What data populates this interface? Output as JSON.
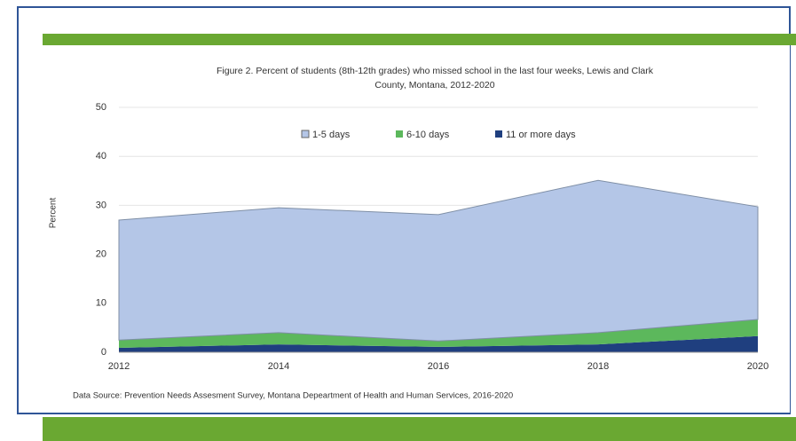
{
  "chart_data": {
    "type": "area",
    "title": [
      "Figure 2. Percent of students (8th-12th grades) who missed school in the last four weeks, Lewis and Clark",
      "County, Montana, 2012-2020"
    ],
    "ylabel": "Percent",
    "source": "Data Source: Prevention Needs Assesment Survey, Montana Depeartment of Health and Human Services, 2016-2020",
    "stacked": true,
    "x": [
      2012,
      2014,
      2016,
      2018,
      2020
    ],
    "series": [
      {
        "name": "11 or more days",
        "color": "#1f3f7f",
        "values": [
          0.9,
          1.6,
          1.1,
          1.6,
          3.3
        ]
      },
      {
        "name": "6-10 days",
        "color": "#5cb85c",
        "values": [
          1.6,
          2.4,
          1.2,
          2.4,
          3.4
        ]
      },
      {
        "name": "1-5 days",
        "color": "#b4c6e7",
        "values": [
          24.5,
          25.5,
          25.8,
          31.1,
          23.0
        ]
      }
    ],
    "legend_order": [
      2,
      1,
      0
    ],
    "xlim": [
      2012,
      2020
    ],
    "xticks": [
      2012,
      2014,
      2016,
      2018,
      2020
    ],
    "ylim": [
      0,
      50
    ],
    "yticks": [
      0,
      10,
      20,
      30,
      40,
      50
    ],
    "grid": true
  }
}
